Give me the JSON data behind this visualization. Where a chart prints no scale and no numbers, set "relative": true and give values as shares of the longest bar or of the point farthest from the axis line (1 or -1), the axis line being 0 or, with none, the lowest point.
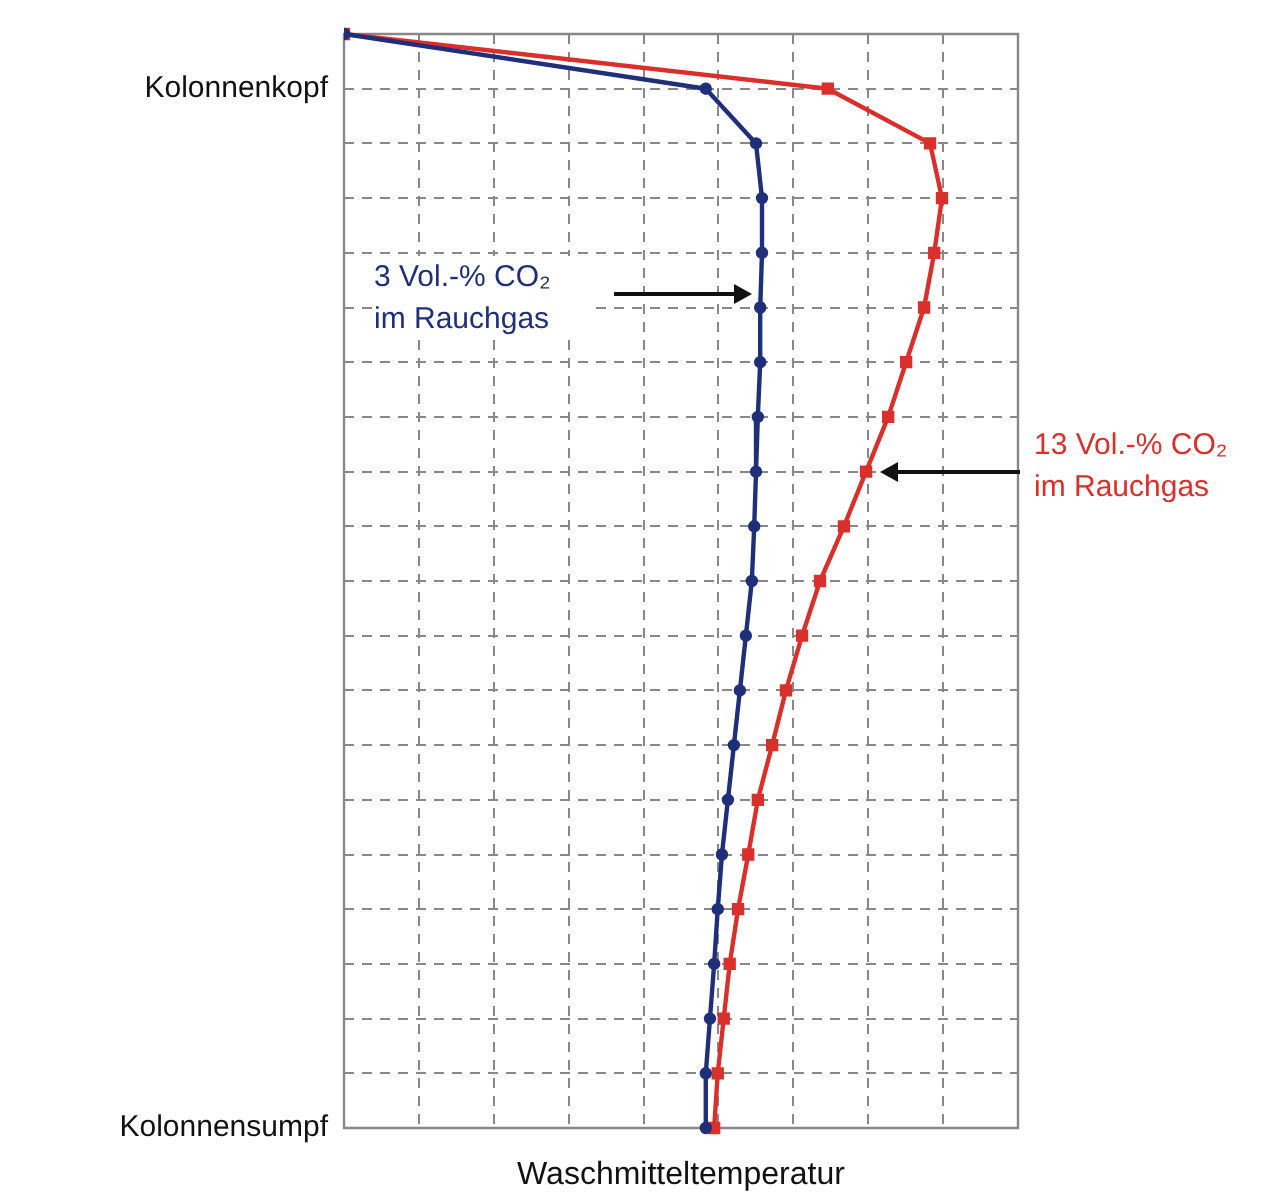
{
  "chart_data": {
    "type": "line",
    "orientation": "horizontal",
    "relative": true,
    "xlabel": "Waschmitteltemperatur",
    "categories": [
      null,
      "Kolonnenkopf",
      null,
      null,
      null,
      null,
      null,
      null,
      null,
      null,
      null,
      null,
      null,
      null,
      null,
      null,
      null,
      null,
      null,
      null,
      "Kolonnensumpf"
    ],
    "series": [
      {
        "name": "3 Vol.-% CO₂ im Rauchgas",
        "color": "#1f2f7a",
        "marker": "circle",
        "values": [
          0,
          0.605,
          0.689,
          0.699,
          0.699,
          0.696,
          0.696,
          0.692,
          0.689,
          0.686,
          0.682,
          0.672,
          0.662,
          0.652,
          0.642,
          0.632,
          0.625,
          0.619,
          0.612,
          0.605,
          0.605
        ]
      },
      {
        "name": "13 Vol.-% CO₂ im Rauchgas",
        "color": "#d9302c",
        "marker": "square",
        "values": [
          0,
          0.809,
          0.98,
          1,
          0.987,
          0.97,
          0.94,
          0.91,
          0.873,
          0.836,
          0.796,
          0.766,
          0.739,
          0.716,
          0.692,
          0.676,
          0.659,
          0.645,
          0.635,
          0.625,
          0.619
        ]
      }
    ],
    "grid": true,
    "legend": false,
    "line_style": "solid"
  }
}
